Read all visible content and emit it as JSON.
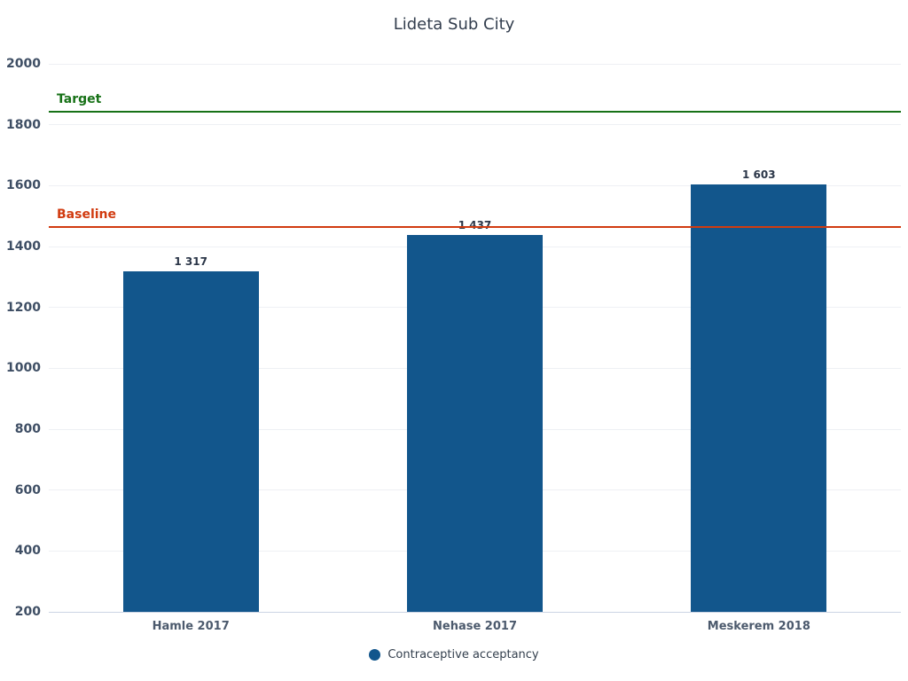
{
  "chart_data": {
    "type": "bar",
    "title": "Lideta Sub City",
    "categories": [
      "Hamle 2017",
      "Nehase 2017",
      "Meskerem 2018"
    ],
    "series": [
      {
        "name": "Contraceptive acceptancy",
        "values": [
          1317,
          1437,
          1603
        ],
        "value_labels": [
          "1 317",
          "1 437",
          "1 603"
        ],
        "color": "#12568c"
      }
    ],
    "reference_lines": [
      {
        "label": "Target",
        "value": 1843,
        "color": "#177117"
      },
      {
        "label": "Baseline",
        "value": 1465,
        "color": "#d13b10"
      }
    ],
    "y_axis": {
      "min": 200,
      "max": 2000,
      "tick_step": 200,
      "ticks": [
        200,
        400,
        600,
        800,
        1000,
        1200,
        1400,
        1600,
        1800,
        2000
      ]
    },
    "xlabel": "",
    "ylabel": "",
    "grid": true,
    "legend_position": "bottom"
  }
}
